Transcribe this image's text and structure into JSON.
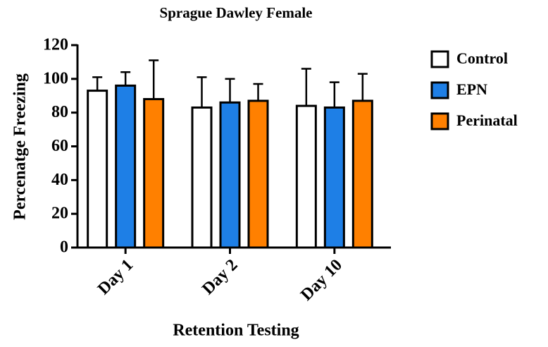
{
  "chart_data": {
    "type": "bar",
    "title": "Sprague Dawley Female",
    "x_label": "Retention Testing",
    "y_label": "Percenatge Freezing",
    "categories": [
      "Day 1",
      "Day 2",
      "Day 10"
    ],
    "series": [
      {
        "name": "Control",
        "color": "#ffffff",
        "values": [
          93,
          83,
          84
        ],
        "errors": [
          8,
          18,
          22
        ]
      },
      {
        "name": "EPN",
        "color": "#1e7fe6",
        "values": [
          96,
          86,
          83
        ],
        "errors": [
          8,
          14,
          15
        ]
      },
      {
        "name": "Perinatal",
        "color": "#ff8000",
        "values": [
          88,
          87,
          87
        ],
        "errors": [
          23,
          10,
          16
        ]
      }
    ],
    "ylim": [
      0,
      120
    ],
    "yticks": [
      0,
      20,
      40,
      60,
      80,
      100,
      120
    ],
    "legend": "right"
  }
}
